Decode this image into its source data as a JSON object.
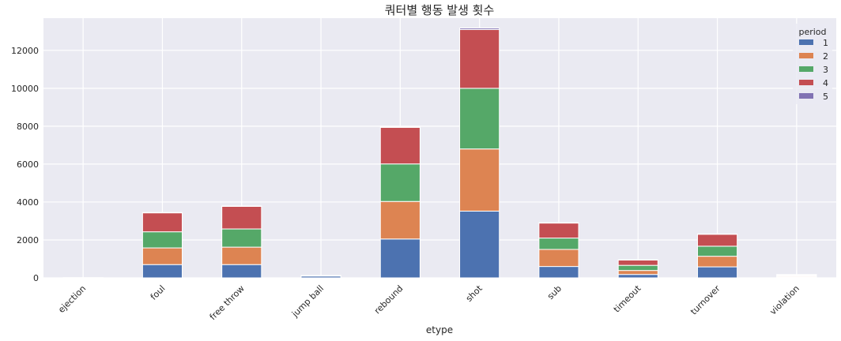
{
  "chart_data": {
    "type": "bar",
    "stacked": true,
    "title": "쿼터별 행동 발생 횟수",
    "xlabel": "etype",
    "ylabel": "",
    "ylim": [
      0,
      13700
    ],
    "yticks": [
      0,
      2000,
      4000,
      6000,
      8000,
      10000,
      12000
    ],
    "grid": true,
    "legend_title": "period",
    "legend_position": "top-right",
    "categories": [
      "ejection",
      "foul",
      "free throw",
      "jump ball",
      "rebound",
      "shot",
      "sub",
      "timeout",
      "turnover",
      "violation"
    ],
    "series": [
      {
        "name": "1",
        "color": "#4c72b0",
        "values": [
          2,
          700,
          700,
          95,
          2050,
          3520,
          600,
          180,
          580,
          40
        ]
      },
      {
        "name": "2",
        "color": "#dd8452",
        "values": [
          2,
          880,
          920,
          10,
          1980,
          3280,
          900,
          210,
          560,
          45
        ]
      },
      {
        "name": "3",
        "color": "#55a868",
        "values": [
          2,
          850,
          960,
          10,
          1980,
          3200,
          600,
          270,
          530,
          40
        ]
      },
      {
        "name": "4",
        "color": "#c44e52",
        "values": [
          2,
          1000,
          1190,
          10,
          1930,
          3100,
          790,
          280,
          630,
          45
        ]
      },
      {
        "name": "5",
        "color": "#8172b3",
        "values": [
          0,
          20,
          20,
          2,
          40,
          80,
          20,
          10,
          15,
          5
        ]
      }
    ]
  }
}
